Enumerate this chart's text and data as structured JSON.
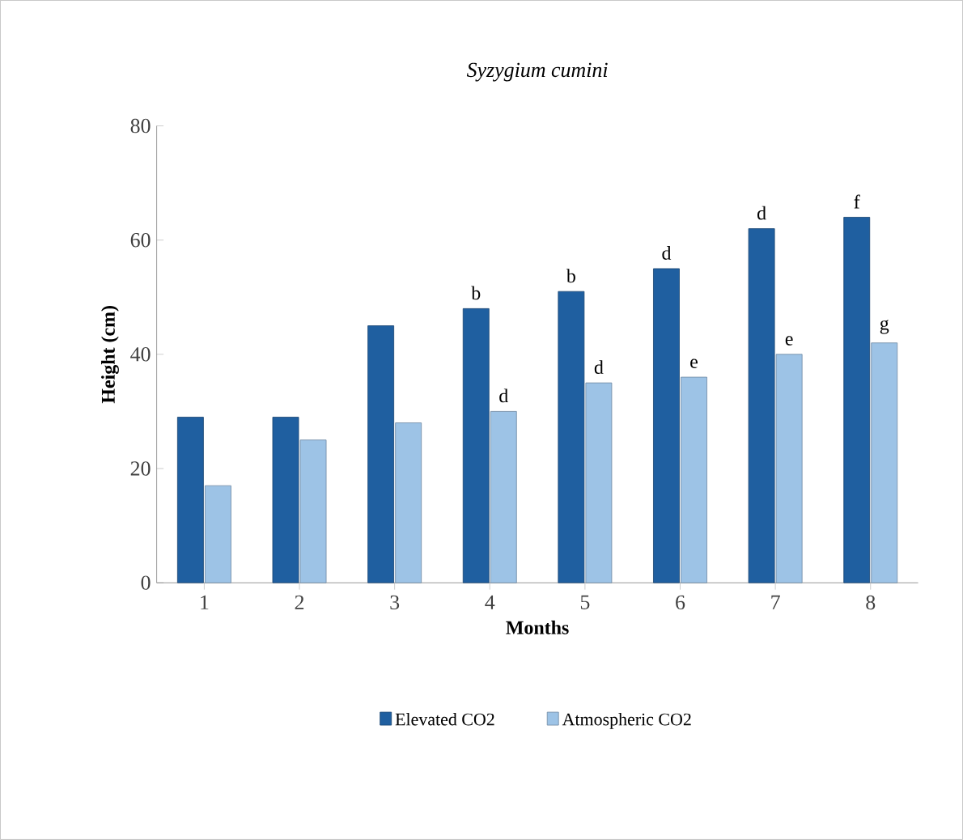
{
  "chart_data": {
    "type": "bar",
    "title": "Syzygium cumini",
    "xlabel": "Months",
    "ylabel": "Height (cm)",
    "categories": [
      "1",
      "2",
      "3",
      "4",
      "5",
      "6",
      "7",
      "8"
    ],
    "series": [
      {
        "name": "Elevated CO2",
        "color": "#1f5fa0",
        "values": [
          29,
          29,
          45,
          48,
          51,
          55,
          62,
          64
        ]
      },
      {
        "name": "Atmospheric CO2",
        "color": "#9dc3e6",
        "values": [
          17,
          25,
          28,
          30,
          35,
          36,
          40,
          42
        ]
      }
    ],
    "ylim": [
      0,
      80
    ],
    "yticks": [
      0,
      20,
      40,
      60,
      80
    ],
    "legend": "bottom",
    "grid": false,
    "annotations": [
      {
        "text": "b",
        "x": "4",
        "y": 48
      },
      {
        "text": "d",
        "x": "4",
        "y": 30
      },
      {
        "text": "b",
        "x": "5",
        "y": 51
      },
      {
        "text": "d",
        "x": "5",
        "y": 35
      },
      {
        "text": "d",
        "x": "6",
        "y": 55
      },
      {
        "text": "e",
        "x": "6",
        "y": 36
      },
      {
        "text": "d",
        "x": "7",
        "y": 62
      },
      {
        "text": "e",
        "x": "7",
        "y": 40
      },
      {
        "text": "f",
        "x": "8",
        "y": 64
      },
      {
        "text": "g",
        "x": "8",
        "y": 42
      }
    ]
  }
}
